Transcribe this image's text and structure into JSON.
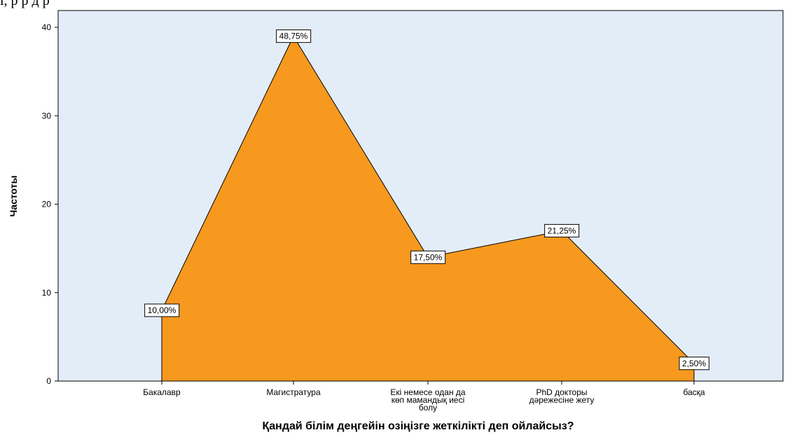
{
  "header_fragment": "і, р р        д  р    ",
  "chart_data": {
    "type": "area",
    "categories": [
      [
        "Бакалавр"
      ],
      [
        "Магистратура"
      ],
      [
        "Екі немесе одан да",
        "көп мамандық иесі",
        "болу"
      ],
      [
        "PhD докторы",
        "дәрежесіне жету"
      ],
      [
        "басқа"
      ]
    ],
    "values": [
      8,
      39,
      14,
      17,
      2
    ],
    "data_labels": [
      "10,00%",
      "48,75%",
      "17,50%",
      "21,25%",
      "2,50%"
    ],
    "xlabel": "Қандай білім деңгейін озіңізге жеткілікті деп ойлайсыз?",
    "ylabel": "Частоты",
    "ylim": [
      0,
      40
    ],
    "yticks": [
      "0",
      "10",
      "20",
      "30",
      "40"
    ],
    "grid": false,
    "colors": {
      "plot_background": "#e3edf8",
      "area_fill": "#f7991f",
      "outline": "#000000"
    }
  }
}
